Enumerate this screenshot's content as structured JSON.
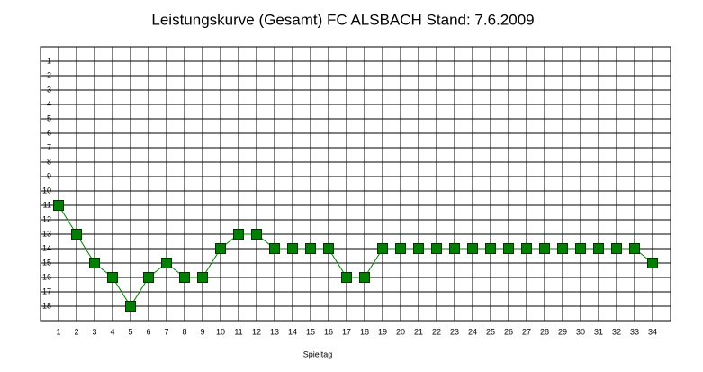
{
  "chart_data": {
    "type": "line",
    "title": "Leistungskurve (Gesamt) FC ALSBACH Stand: 7.6.2009",
    "x_label": "Spieltag",
    "x": [
      1,
      2,
      3,
      4,
      5,
      6,
      7,
      8,
      9,
      10,
      11,
      12,
      13,
      14,
      15,
      16,
      17,
      18,
      19,
      20,
      21,
      22,
      23,
      24,
      25,
      26,
      27,
      28,
      29,
      30,
      31,
      32,
      33,
      34
    ],
    "series": [
      {
        "name": "FC ALSBACH",
        "color": "#008000",
        "values": [
          11,
          13,
          15,
          16,
          18,
          16,
          15,
          16,
          16,
          14,
          13,
          13,
          14,
          14,
          14,
          14,
          16,
          16,
          14,
          14,
          14,
          14,
          14,
          14,
          14,
          14,
          14,
          14,
          14,
          14,
          14,
          14,
          14,
          15
        ]
      }
    ],
    "xlim": [
      0,
      35
    ],
    "xticks": [
      1,
      2,
      3,
      4,
      5,
      6,
      7,
      8,
      9,
      10,
      11,
      12,
      13,
      14,
      15,
      16,
      17,
      18,
      19,
      20,
      21,
      22,
      23,
      24,
      25,
      26,
      27,
      28,
      29,
      30,
      31,
      32,
      33,
      34
    ],
    "ylim": [
      19,
      0
    ],
    "yticks": [
      1,
      2,
      3,
      4,
      5,
      6,
      7,
      8,
      9,
      10,
      11,
      12,
      13,
      14,
      15,
      16,
      17,
      18
    ],
    "grid": true
  }
}
